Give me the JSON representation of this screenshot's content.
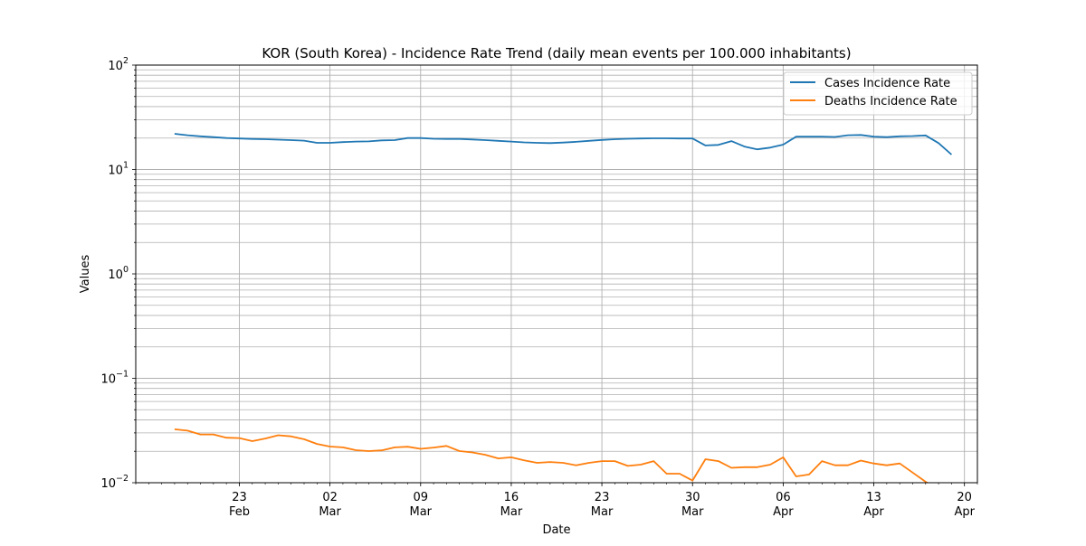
{
  "chart_data": {
    "type": "line",
    "title": "KOR (South Korea) - Incidence Rate Trend (daily mean events per 100.000 inhabitants)",
    "xlabel": "Date",
    "ylabel": "Values",
    "yscale": "log",
    "ylim": [
      0.01,
      100
    ],
    "xlim": [
      "2022-02-15",
      "2022-04-21"
    ],
    "grid": true,
    "legend_position": "top-right",
    "colors": {
      "cases": "#1f77b4",
      "deaths": "#ff7f0e",
      "grid": "#b0b0b0"
    },
    "x_ticks": [
      {
        "date": "2022-02-23",
        "day": "23",
        "month": "Feb"
      },
      {
        "date": "2022-03-02",
        "day": "02",
        "month": "Mar"
      },
      {
        "date": "2022-03-09",
        "day": "09",
        "month": "Mar"
      },
      {
        "date": "2022-03-16",
        "day": "16",
        "month": "Mar"
      },
      {
        "date": "2022-03-23",
        "day": "23",
        "month": "Mar"
      },
      {
        "date": "2022-03-30",
        "day": "30",
        "month": "Mar"
      },
      {
        "date": "2022-04-06",
        "day": "06",
        "month": "Apr"
      },
      {
        "date": "2022-04-13",
        "day": "13",
        "month": "Apr"
      },
      {
        "date": "2022-04-20",
        "day": "20",
        "month": "Apr"
      }
    ],
    "y_ticks": [
      {
        "value": 0.01,
        "base": "10",
        "exp": "−2"
      },
      {
        "value": 0.1,
        "base": "10",
        "exp": "−1"
      },
      {
        "value": 1,
        "base": "10",
        "exp": "0"
      },
      {
        "value": 10,
        "base": "10",
        "exp": "1"
      },
      {
        "value": 100,
        "base": "10",
        "exp": "2"
      }
    ],
    "series": [
      {
        "name": "Cases Incidence Rate",
        "key": "cases",
        "x": [
          "2022-02-18",
          "2022-02-19",
          "2022-02-20",
          "2022-02-21",
          "2022-02-22",
          "2022-02-23",
          "2022-02-24",
          "2022-02-25",
          "2022-02-26",
          "2022-02-27",
          "2022-02-28",
          "2022-03-01",
          "2022-03-02",
          "2022-03-03",
          "2022-03-04",
          "2022-03-05",
          "2022-03-06",
          "2022-03-07",
          "2022-03-08",
          "2022-03-09",
          "2022-03-10",
          "2022-03-11",
          "2022-03-12",
          "2022-03-13",
          "2022-03-14",
          "2022-03-15",
          "2022-03-16",
          "2022-03-17",
          "2022-03-18",
          "2022-03-19",
          "2022-03-20",
          "2022-03-21",
          "2022-03-22",
          "2022-03-23",
          "2022-03-24",
          "2022-03-25",
          "2022-03-26",
          "2022-03-27",
          "2022-03-28",
          "2022-03-29",
          "2022-03-30",
          "2022-03-31",
          "2022-04-01",
          "2022-04-02",
          "2022-04-03",
          "2022-04-04",
          "2022-04-05",
          "2022-04-06",
          "2022-04-07",
          "2022-04-08",
          "2022-04-09",
          "2022-04-10",
          "2022-04-11",
          "2022-04-12",
          "2022-04-13",
          "2022-04-14",
          "2022-04-15",
          "2022-04-16",
          "2022-04-17",
          "2022-04-18",
          "2022-04-19"
        ],
        "y": [
          22.0,
          21.3,
          20.8,
          20.4,
          20.0,
          19.8,
          19.6,
          19.5,
          19.3,
          19.1,
          18.9,
          18.0,
          18.0,
          18.3,
          18.5,
          18.6,
          19.0,
          19.1,
          20.0,
          20.0,
          19.7,
          19.6,
          19.6,
          19.4,
          19.1,
          18.8,
          18.5,
          18.2,
          18.0,
          17.9,
          18.1,
          18.4,
          18.8,
          19.2,
          19.5,
          19.7,
          19.8,
          19.9,
          19.9,
          19.8,
          19.8,
          17.0,
          17.2,
          18.7,
          16.6,
          15.6,
          16.2,
          17.3,
          20.6,
          20.6,
          20.6,
          20.5,
          21.3,
          21.4,
          20.6,
          20.4,
          20.8,
          20.9,
          21.2,
          17.9,
          13.9
        ]
      },
      {
        "name": "Deaths Incidence Rate",
        "key": "deaths",
        "x": [
          "2022-02-18",
          "2022-02-19",
          "2022-02-20",
          "2022-02-21",
          "2022-02-22",
          "2022-02-23",
          "2022-02-24",
          "2022-02-25",
          "2022-02-26",
          "2022-02-27",
          "2022-02-28",
          "2022-03-01",
          "2022-03-02",
          "2022-03-03",
          "2022-03-04",
          "2022-03-05",
          "2022-03-06",
          "2022-03-07",
          "2022-03-08",
          "2022-03-09",
          "2022-03-10",
          "2022-03-11",
          "2022-03-12",
          "2022-03-13",
          "2022-03-14",
          "2022-03-15",
          "2022-03-16",
          "2022-03-17",
          "2022-03-18",
          "2022-03-19",
          "2022-03-20",
          "2022-03-21",
          "2022-03-22",
          "2022-03-23",
          "2022-03-24",
          "2022-03-25",
          "2022-03-26",
          "2022-03-27",
          "2022-03-28",
          "2022-03-29",
          "2022-03-30",
          "2022-03-31",
          "2022-04-01",
          "2022-04-02",
          "2022-04-03",
          "2022-04-04",
          "2022-04-05",
          "2022-04-06",
          "2022-04-07",
          "2022-04-08",
          "2022-04-09",
          "2022-04-10",
          "2022-04-11",
          "2022-04-12",
          "2022-04-13",
          "2022-04-14",
          "2022-04-15",
          "2022-04-16",
          "2022-04-17",
          "2022-04-18"
        ],
        "y": [
          0.0325,
          0.0315,
          0.029,
          0.029,
          0.027,
          0.0268,
          0.025,
          0.0265,
          0.0285,
          0.0278,
          0.0261,
          0.0235,
          0.0222,
          0.0218,
          0.0205,
          0.0201,
          0.0204,
          0.0218,
          0.0221,
          0.0211,
          0.0217,
          0.0225,
          0.0201,
          0.0195,
          0.0185,
          0.0171,
          0.0175,
          0.0164,
          0.0155,
          0.0158,
          0.0155,
          0.0147,
          0.0155,
          0.0161,
          0.0161,
          0.0145,
          0.0149,
          0.0161,
          0.0122,
          0.0122,
          0.0105,
          0.0168,
          0.0161,
          0.0139,
          0.0141,
          0.0141,
          0.0149,
          0.0175,
          0.0115,
          0.012,
          0.0161,
          0.0147,
          0.0147,
          0.0163,
          0.0153,
          0.0147,
          0.0153,
          0.0125,
          0.0102,
          0.0088
        ]
      }
    ]
  }
}
